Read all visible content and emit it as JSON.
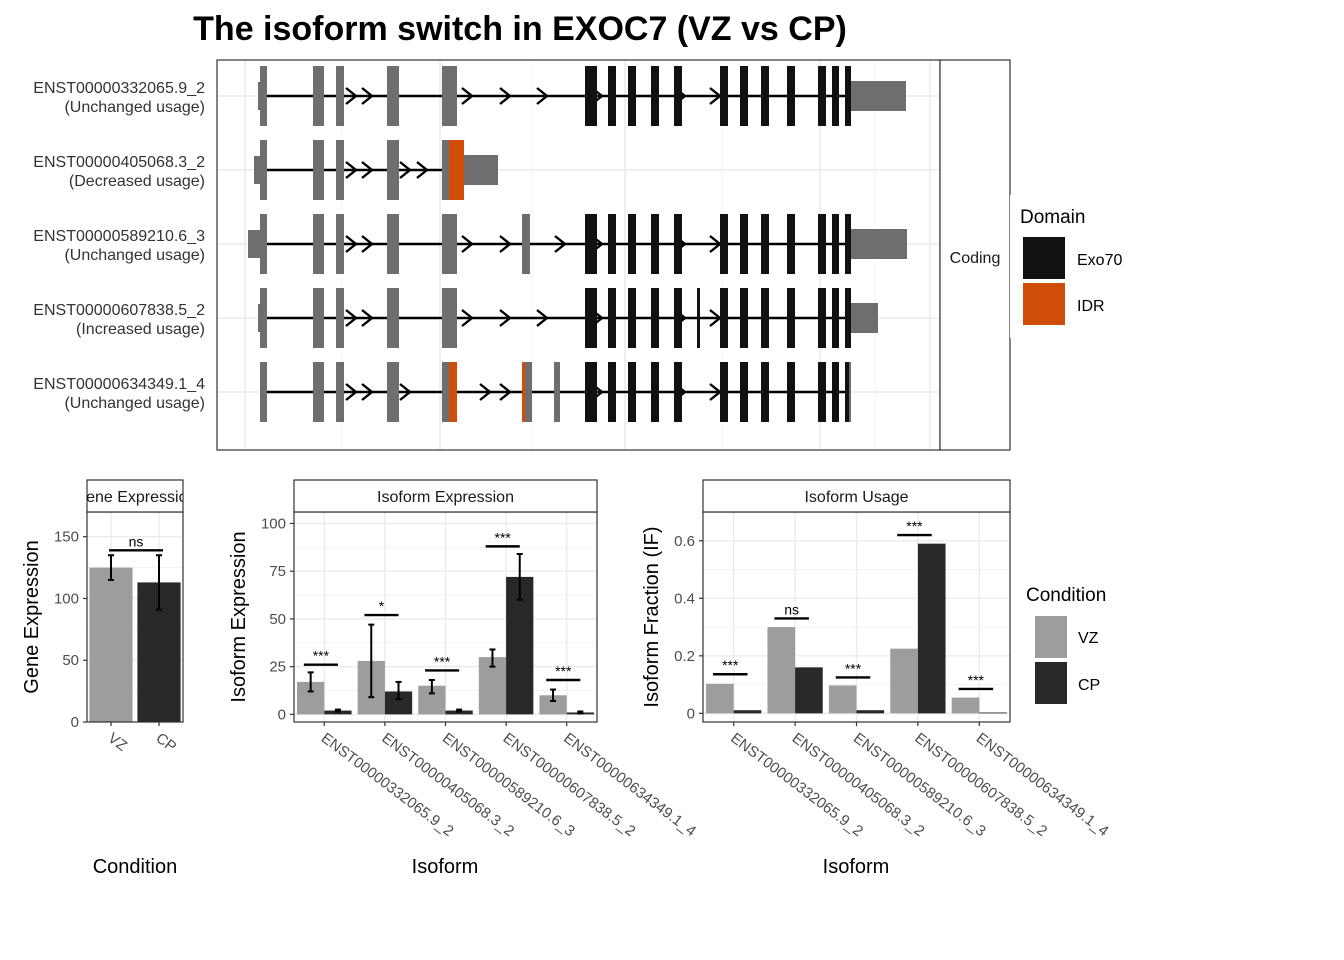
{
  "title": "The isoform switch in EXOC7 (VZ vs CP)",
  "colors": {
    "exon": "#6e6e6e",
    "exo70": "#111111",
    "idr": "#d04c09",
    "vz": "#9d9d9d",
    "cp": "#282828",
    "grid": "#ebebeb"
  },
  "structure": {
    "strip_label": "Coding",
    "isoforms": [
      {
        "id": "ENST00000332065.9_2",
        "usage": "(Unchanged usage)"
      },
      {
        "id": "ENST00000405068.3_2",
        "usage": "(Decreased usage)"
      },
      {
        "id": "ENST00000589210.6_3",
        "usage": "(Unchanged usage)"
      },
      {
        "id": "ENST00000607838.5_2",
        "usage": "(Increased usage)"
      },
      {
        "id": "ENST00000634349.1_4",
        "usage": "(Unchanged usage)"
      }
    ],
    "legend": {
      "title": "Domain",
      "items": [
        {
          "label": "Exo70",
          "color": "#111111"
        },
        {
          "label": "IDR",
          "color": "#d04c09"
        }
      ]
    }
  },
  "condition_legend": {
    "title": "Condition",
    "items": [
      {
        "label": "VZ",
        "color": "#9d9d9d"
      },
      {
        "label": "CP",
        "color": "#282828"
      }
    ]
  },
  "chart_data": [
    {
      "type": "bar",
      "strip": "Gene Expression",
      "xlabel": "Condition",
      "ylabel": "Gene Expression",
      "categories": [
        "VZ",
        "CP"
      ],
      "values": [
        125,
        113
      ],
      "error_low": [
        115,
        91
      ],
      "error_high": [
        135,
        135
      ],
      "ylim": [
        0,
        170
      ],
      "yticks": [
        0,
        50,
        100,
        150
      ],
      "significance": [
        {
          "label": "ns"
        }
      ]
    },
    {
      "type": "bar",
      "strip": "Isoform Expression",
      "xlabel": "Isoform",
      "ylabel": "Isoform Expression",
      "categories": [
        "ENST00000332065.9_2",
        "ENST00000405068.3_2",
        "ENST00000589210.6_3",
        "ENST00000607838.5_2",
        "ENST00000634349.1_4"
      ],
      "series": [
        {
          "name": "VZ",
          "values": [
            17,
            28,
            15,
            30,
            10
          ],
          "error_low": [
            12,
            9,
            11,
            25,
            7
          ],
          "error_high": [
            22,
            47,
            18,
            34,
            13
          ]
        },
        {
          "name": "CP",
          "values": [
            2,
            12,
            2,
            72,
            1
          ],
          "error_low": [
            1.5,
            8,
            1.5,
            60,
            0.5
          ],
          "error_high": [
            2.5,
            17,
            2.5,
            84,
            1.5
          ]
        }
      ],
      "ylim": [
        -4,
        106
      ],
      "yticks": [
        0,
        25,
        50,
        75,
        100
      ],
      "significance": [
        {
          "label": "***",
          "y": 26
        },
        {
          "label": "*",
          "y": 52
        },
        {
          "label": "***",
          "y": 23
        },
        {
          "label": "***",
          "y": 88
        },
        {
          "label": "***",
          "y": 18
        }
      ]
    },
    {
      "type": "bar",
      "strip": "Isoform Usage",
      "xlabel": "Isoform",
      "ylabel": "Isoform Fraction (IF)",
      "categories": [
        "ENST00000332065.9_2",
        "ENST00000405068.3_2",
        "ENST00000589210.6_3",
        "ENST00000607838.5_2",
        "ENST00000634349.1_4"
      ],
      "series": [
        {
          "name": "VZ",
          "values": [
            0.103,
            0.3,
            0.097,
            0.225,
            0.055
          ]
        },
        {
          "name": "CP",
          "values": [
            0.011,
            0.16,
            0.011,
            0.59,
            0.003
          ]
        }
      ],
      "ylim": [
        -0.03,
        0.7
      ],
      "yticks": [
        0.0,
        0.2,
        0.4,
        0.6
      ],
      "significance": [
        {
          "label": "***",
          "y": 0.136
        },
        {
          "label": "ns",
          "y": 0.33
        },
        {
          "label": "***",
          "y": 0.125
        },
        {
          "label": "***",
          "y": 0.62
        },
        {
          "label": "***",
          "y": 0.085
        }
      ]
    }
  ]
}
